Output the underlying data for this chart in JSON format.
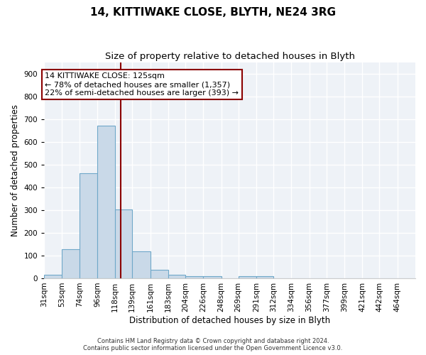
{
  "title1": "14, KITTIWAKE CLOSE, BLYTH, NE24 3RG",
  "title2": "Size of property relative to detached houses in Blyth",
  "xlabel": "Distribution of detached houses by size in Blyth",
  "ylabel": "Number of detached properties",
  "bar_labels": [
    "31sqm",
    "53sqm",
    "74sqm",
    "96sqm",
    "118sqm",
    "139sqm",
    "161sqm",
    "183sqm",
    "204sqm",
    "226sqm",
    "248sqm",
    "269sqm",
    "291sqm",
    "312sqm",
    "334sqm",
    "356sqm",
    "377sqm",
    "399sqm",
    "421sqm",
    "442sqm",
    "464sqm"
  ],
  "bar_heights": [
    15,
    128,
    462,
    672,
    303,
    120,
    38,
    15,
    10,
    8,
    0,
    10,
    10,
    0,
    0,
    0,
    0,
    0,
    0,
    0,
    0
  ],
  "bar_color": "#c9d9e8",
  "bar_edge_color": "#6fa8c9",
  "property_size": 125,
  "bin_edges": [
    31,
    53,
    74,
    96,
    118,
    139,
    161,
    183,
    204,
    226,
    248,
    269,
    291,
    312,
    334,
    356,
    377,
    399,
    421,
    442,
    464,
    486
  ],
  "vline_color": "#8b0000",
  "annotation_line1": "14 KITTIWAKE CLOSE: 125sqm",
  "annotation_line2": "← 78% of detached houses are smaller (1,357)",
  "annotation_line3": "22% of semi-detached houses are larger (393) →",
  "annotation_box_color": "#8b0000",
  "ylim": [
    0,
    950
  ],
  "yticks": [
    0,
    100,
    200,
    300,
    400,
    500,
    600,
    700,
    800,
    900
  ],
  "footer1": "Contains HM Land Registry data © Crown copyright and database right 2024.",
  "footer2": "Contains public sector information licensed under the Open Government Licence v3.0.",
  "bg_color": "#eef2f7",
  "grid_color": "#ffffff",
  "title1_fontsize": 11,
  "title2_fontsize": 9.5,
  "axis_fontsize": 8.5,
  "tick_fontsize": 7.5,
  "annotation_fontsize": 8,
  "footer_fontsize": 6
}
